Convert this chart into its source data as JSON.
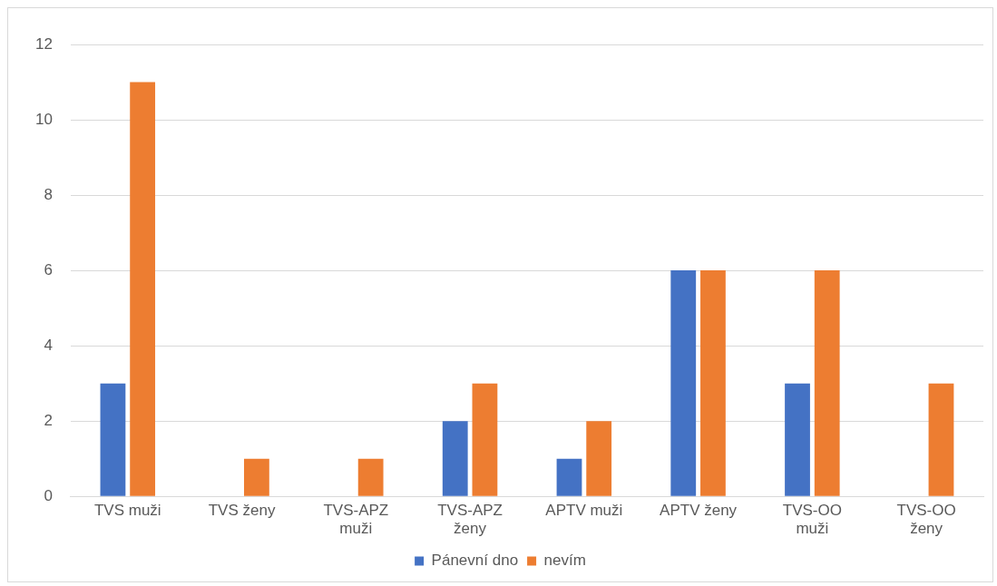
{
  "chart_data": {
    "type": "bar",
    "categories": [
      "TVS muži",
      "TVS ženy",
      "TVS-APZ muži",
      "TVS-APZ ženy",
      "APTV muži",
      "APTV ženy",
      "TVS-OO muži",
      "TVS-OO ženy"
    ],
    "series": [
      {
        "name": "Pánevní dno",
        "color": "#4472c4",
        "values": [
          3,
          0,
          0,
          2,
          1,
          6,
          3,
          0
        ]
      },
      {
        "name": "nevím",
        "color": "#ed7d31",
        "values": [
          11,
          1,
          1,
          3,
          2,
          6,
          6,
          3
        ]
      }
    ],
    "ylim": [
      0,
      12
    ],
    "yticks": [
      0,
      2,
      4,
      6,
      8,
      10,
      12
    ],
    "grid": "y",
    "legend": "bottom"
  }
}
